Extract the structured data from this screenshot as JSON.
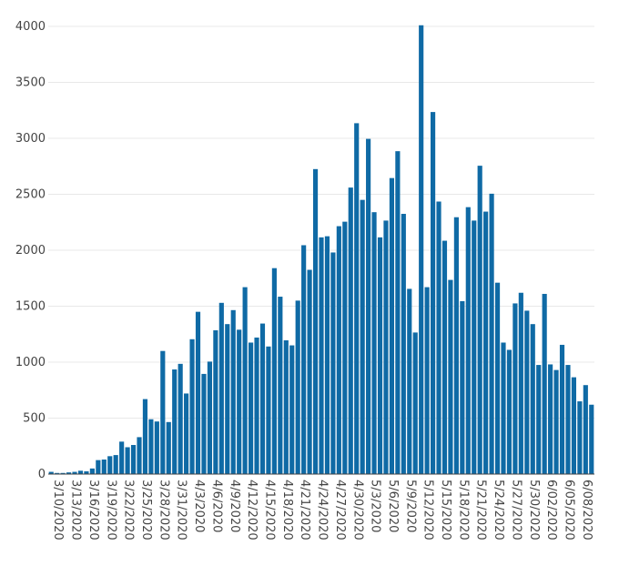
{
  "chart_data": {
    "type": "bar",
    "title": "",
    "xlabel": "",
    "ylabel": "",
    "ylim": [
      0,
      4000
    ],
    "yticks": [
      0,
      500,
      1000,
      1500,
      2000,
      2500,
      3000,
      3500,
      4000
    ],
    "grid": true,
    "legend": "none",
    "bar_color": "#0f6aa5",
    "x_tick_labels": [
      "3/10/2020",
      "3/13/2020",
      "3/16/2020",
      "3/19/2020",
      "3/22/2020",
      "3/25/2020",
      "3/28/2020",
      "3/31/2020",
      "4/3/2020",
      "4/6/2020",
      "4/9/2020",
      "4/12/2020",
      "4/15/2020",
      "4/18/2020",
      "4/21/2020",
      "4/24/2020",
      "4/27/2020",
      "4/30/2020",
      "5/3/2020",
      "5/6/2020",
      "5/9/2020",
      "5/12/2020",
      "5/15/2020",
      "5/18/2020",
      "5/21/2020",
      "5/24/2020",
      "5/27/2020",
      "5/30/2020",
      "6/02/2020",
      "6/05/2020",
      "6/08/2020"
    ],
    "categories": [
      "3/10/2020",
      "3/11/2020",
      "3/12/2020",
      "3/13/2020",
      "3/14/2020",
      "3/15/2020",
      "3/16/2020",
      "3/17/2020",
      "3/18/2020",
      "3/19/2020",
      "3/20/2020",
      "3/21/2020",
      "3/22/2020",
      "3/23/2020",
      "3/24/2020",
      "3/25/2020",
      "3/26/2020",
      "3/27/2020",
      "3/28/2020",
      "3/29/2020",
      "3/30/2020",
      "3/31/2020",
      "4/1/2020",
      "4/2/2020",
      "4/3/2020",
      "4/4/2020",
      "4/5/2020",
      "4/6/2020",
      "4/7/2020",
      "4/8/2020",
      "4/9/2020",
      "4/10/2020",
      "4/11/2020",
      "4/12/2020",
      "4/13/2020",
      "4/14/2020",
      "4/15/2020",
      "4/16/2020",
      "4/17/2020",
      "4/18/2020",
      "4/19/2020",
      "4/20/2020",
      "4/21/2020",
      "4/22/2020",
      "4/23/2020",
      "4/24/2020",
      "4/25/2020",
      "4/26/2020",
      "4/27/2020",
      "4/28/2020",
      "4/29/2020",
      "4/30/2020",
      "5/1/2020",
      "5/2/2020",
      "5/3/2020",
      "5/4/2020",
      "5/5/2020",
      "5/6/2020",
      "5/7/2020",
      "5/8/2020",
      "5/9/2020",
      "5/10/2020",
      "5/11/2020",
      "5/12/2020",
      "5/13/2020",
      "5/14/2020",
      "5/15/2020",
      "5/16/2020",
      "5/17/2020",
      "5/18/2020",
      "5/19/2020",
      "5/20/2020",
      "5/21/2020",
      "5/22/2020",
      "5/23/2020",
      "5/24/2020",
      "5/25/2020",
      "5/26/2020",
      "5/27/2020",
      "5/28/2020",
      "5/29/2020",
      "5/30/2020",
      "5/31/2020",
      "6/1/2020",
      "6/2/2020",
      "6/3/2020",
      "6/4/2020",
      "6/5/2020",
      "6/6/2020",
      "6/7/2020",
      "6/8/2020",
      "6/9/2020",
      "6/10/2020"
    ],
    "values": [
      20,
      10,
      10,
      15,
      20,
      30,
      25,
      50,
      125,
      130,
      160,
      170,
      290,
      240,
      260,
      330,
      670,
      490,
      470,
      1100,
      465,
      935,
      985,
      720,
      1205,
      1450,
      895,
      1005,
      1285,
      1530,
      1340,
      1465,
      1290,
      1670,
      1175,
      1220,
      1345,
      1140,
      1840,
      1585,
      1195,
      1150,
      1550,
      2045,
      1825,
      2725,
      2115,
      2125,
      1980,
      2215,
      2255,
      2560,
      3135,
      2450,
      2995,
      2340,
      2115,
      2265,
      2645,
      2885,
      2325,
      1655,
      1265,
      4010,
      1670,
      3235,
      2435,
      2085,
      1735,
      2295,
      1545,
      2385,
      2265,
      2755,
      2345,
      2505,
      1710,
      1175,
      1110,
      1525,
      1620,
      1460,
      1340,
      975,
      1610,
      980,
      930,
      1155,
      975,
      865,
      650,
      795,
      620
    ]
  }
}
